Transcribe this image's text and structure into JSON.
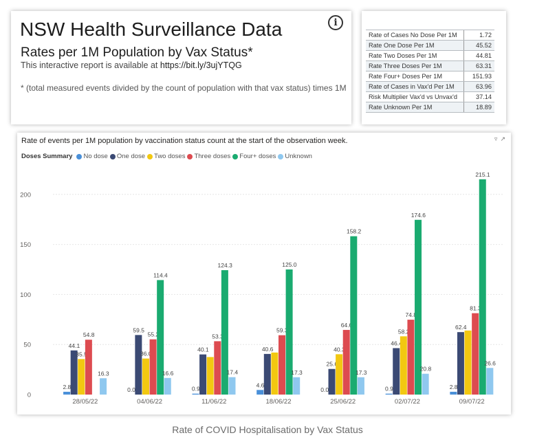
{
  "header": {
    "title": "NSW Health Surveillance Data",
    "subtitle": "Rates per 1M Population by Vax Status*",
    "available_text": "This interactive report is available at ",
    "available_url": "https://bit.ly/3ujYTQG",
    "footnote": "* (total measured events divided by the count of population with that vax status) times 1M",
    "info_icon": "info-icon"
  },
  "stats_table": [
    {
      "label": "Rate of Cases No Dose Per 1M",
      "value": "1.72"
    },
    {
      "label": "Rate One Dose Per 1M",
      "value": "45.52"
    },
    {
      "label": "Rate Two Doses Per 1M",
      "value": "44.81"
    },
    {
      "label": "Rate Three Doses Per 1M",
      "value": "63.31"
    },
    {
      "label": "Rate Four+ Doses Per 1M",
      "value": "151.93"
    },
    {
      "label": "Rate of Cases in Vax'd Per 1M",
      "value": "63.96"
    },
    {
      "label": "Risk Multiplier Vax'd vs Unvax'd",
      "value": "37.14"
    },
    {
      "label": "Rate Unknown Per 1M",
      "value": "18.89"
    }
  ],
  "caption": "Rate of COVID Hospitalisation by Vax Status",
  "chart_data": {
    "type": "bar",
    "title": "Rate of events per 1M population by vaccination status count at the start of the observation week.",
    "legend_title": "Doses Summary",
    "legend_position": "top-left",
    "grid": true,
    "ylim": [
      0,
      220
    ],
    "yticks": [
      0,
      50,
      100,
      150,
      200
    ],
    "categories": [
      "28/05/22",
      "04/06/22",
      "11/06/22",
      "18/06/22",
      "25/06/22",
      "02/07/22",
      "09/07/22"
    ],
    "series": [
      {
        "name": "No dose",
        "color": "#4a90d9",
        "values": [
          2.8,
          0.0,
          0.9,
          4.6,
          0.0,
          0.9,
          2.8
        ],
        "labels": [
          "2.8",
          "0.0",
          "0.9",
          "4.6",
          "0.0",
          "0.9",
          "2.8"
        ]
      },
      {
        "name": "One dose",
        "color": "#3b4a74",
        "values": [
          44.1,
          59.5,
          40.1,
          40.6,
          25.6,
          46.4,
          62.4
        ],
        "labels": [
          "44.1",
          "59.5",
          "40.1",
          "40.6",
          "25.6",
          "46.4",
          "62.4"
        ]
      },
      {
        "name": "Two doses",
        "color": "#f2c811",
        "values": [
          35.5,
          36.0,
          37.5,
          42.0,
          40.3,
          58.2,
          64.0
        ],
        "labels": [
          "35.5",
          "36.0",
          "",
          "",
          "40.3",
          "58.2",
          ""
        ]
      },
      {
        "name": "Three doses",
        "color": "#dd4b50",
        "values": [
          54.8,
          55.2,
          53.3,
          59.3,
          64.6,
          74.8,
          81.3
        ],
        "labels": [
          "54.8",
          "55.2",
          "53.3",
          "59.3",
          "64.6",
          "74.8",
          "81.3"
        ]
      },
      {
        "name": "Four+ doses",
        "color": "#1aab70",
        "values": [
          0,
          114.4,
          124.3,
          125.0,
          158.2,
          174.6,
          215.1
        ],
        "labels": [
          "",
          "114.4",
          "124.3",
          "125.0",
          "158.2",
          "174.6",
          "215.1"
        ]
      },
      {
        "name": "Unknown",
        "color": "#8fc8ef",
        "values": [
          16.3,
          16.6,
          17.4,
          17.3,
          17.3,
          20.8,
          26.6
        ],
        "labels": [
          "16.3",
          "16.6",
          "17.4",
          "17.3",
          "17.3",
          "20.8",
          "26.6"
        ]
      }
    ]
  },
  "chart_tools": {
    "filter_icon": "filter-icon",
    "focus_icon": "focus-mode-icon"
  }
}
